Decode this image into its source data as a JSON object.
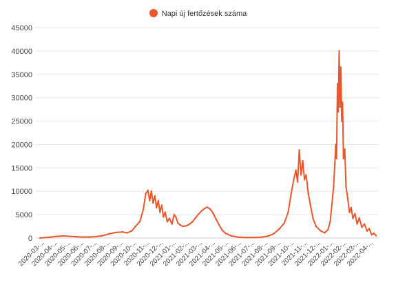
{
  "chart_data": {
    "type": "line",
    "title": "",
    "xlabel": "",
    "ylabel": "",
    "ylim": [
      0,
      45000
    ],
    "y_ticks": [
      0,
      5000,
      10000,
      15000,
      20000,
      25000,
      30000,
      35000,
      40000,
      45000
    ],
    "grid": true,
    "legend_position": "top-center",
    "x_tick_labels": [
      "2020-03-...",
      "2020-04-...",
      "2020-05-...",
      "2020-06-...",
      "2020-07-...",
      "2020-08-...",
      "2020-09-...",
      "2020-10-...",
      "2020-11-...",
      "2020-12-...",
      "2021-01-...",
      "2021-02-...",
      "2021-03-...",
      "2021-04-...",
      "2021-05-...",
      "2021-06-...",
      "2021-07-...",
      "2021-08-...",
      "2021-09-...",
      "2021-10-...",
      "2021-11-...",
      "2021-12-...",
      "2022-01-...",
      "2022-02-...",
      "2022-03-...",
      "2022-04-..."
    ],
    "series": [
      {
        "name": "Napi új fertőzések száma",
        "color": "#e8562a",
        "points": [
          [
            "2020-03-01",
            0
          ],
          [
            "2020-03-20",
            150
          ],
          [
            "2020-04-10",
            350
          ],
          [
            "2020-04-25",
            450
          ],
          [
            "2020-05-10",
            350
          ],
          [
            "2020-05-25",
            280
          ],
          [
            "2020-06-10",
            200
          ],
          [
            "2020-06-25",
            220
          ],
          [
            "2020-07-10",
            300
          ],
          [
            "2020-07-25",
            500
          ],
          [
            "2020-08-10",
            900
          ],
          [
            "2020-08-25",
            1200
          ],
          [
            "2020-09-10",
            1300
          ],
          [
            "2020-09-20",
            1100
          ],
          [
            "2020-10-01",
            1500
          ],
          [
            "2020-10-10",
            2500
          ],
          [
            "2020-10-20",
            3500
          ],
          [
            "2020-10-28",
            6000
          ],
          [
            "2020-11-03",
            9500
          ],
          [
            "2020-11-08",
            10200
          ],
          [
            "2020-11-12",
            8000
          ],
          [
            "2020-11-16",
            10000
          ],
          [
            "2020-11-20",
            7500
          ],
          [
            "2020-11-24",
            9000
          ],
          [
            "2020-11-28",
            6500
          ],
          [
            "2020-12-02",
            8000
          ],
          [
            "2020-12-06",
            5500
          ],
          [
            "2020-12-10",
            7000
          ],
          [
            "2020-12-14",
            4500
          ],
          [
            "2020-12-18",
            5500
          ],
          [
            "2020-12-23",
            3500
          ],
          [
            "2020-12-28",
            4200
          ],
          [
            "2021-01-03",
            3000
          ],
          [
            "2021-01-08",
            5000
          ],
          [
            "2021-01-12",
            4500
          ],
          [
            "2021-01-17",
            3200
          ],
          [
            "2021-01-22",
            2800
          ],
          [
            "2021-01-28",
            2500
          ],
          [
            "2021-02-05",
            2600
          ],
          [
            "2021-02-12",
            2900
          ],
          [
            "2021-02-20",
            3500
          ],
          [
            "2021-02-27",
            4300
          ],
          [
            "2021-03-06",
            5100
          ],
          [
            "2021-03-13",
            5800
          ],
          [
            "2021-03-20",
            6300
          ],
          [
            "2021-03-26",
            6600
          ],
          [
            "2021-04-02",
            6200
          ],
          [
            "2021-04-09",
            5300
          ],
          [
            "2021-04-16",
            4000
          ],
          [
            "2021-04-23",
            2800
          ],
          [
            "2021-04-30",
            1700
          ],
          [
            "2021-05-08",
            1000
          ],
          [
            "2021-05-20",
            500
          ],
          [
            "2021-06-05",
            200
          ],
          [
            "2021-06-25",
            100
          ],
          [
            "2021-07-15",
            100
          ],
          [
            "2021-08-01",
            200
          ],
          [
            "2021-08-15",
            400
          ],
          [
            "2021-08-28",
            900
          ],
          [
            "2021-09-10",
            1900
          ],
          [
            "2021-09-22",
            3200
          ],
          [
            "2021-10-01",
            5500
          ],
          [
            "2021-10-08",
            9500
          ],
          [
            "2021-10-14",
            12500
          ],
          [
            "2021-10-19",
            14500
          ],
          [
            "2021-10-23",
            12000
          ],
          [
            "2021-10-27",
            18800
          ],
          [
            "2021-10-31",
            13500
          ],
          [
            "2021-11-04",
            16500
          ],
          [
            "2021-11-08",
            12500
          ],
          [
            "2021-11-12",
            13500
          ],
          [
            "2021-11-17",
            9500
          ],
          [
            "2021-11-22",
            7000
          ],
          [
            "2021-11-28",
            4200
          ],
          [
            "2021-12-05",
            2500
          ],
          [
            "2021-12-15",
            1600
          ],
          [
            "2021-12-25",
            1100
          ],
          [
            "2022-01-02",
            1800
          ],
          [
            "2022-01-07",
            3500
          ],
          [
            "2022-01-12",
            8000
          ],
          [
            "2022-01-15",
            11000
          ],
          [
            "2022-01-18",
            16000
          ],
          [
            "2022-01-20",
            20000
          ],
          [
            "2022-01-22",
            17000
          ],
          [
            "2022-01-24",
            33000
          ],
          [
            "2022-01-26",
            27000
          ],
          [
            "2022-01-28",
            40000
          ],
          [
            "2022-01-30",
            28000
          ],
          [
            "2022-02-01",
            36500
          ],
          [
            "2022-02-03",
            25000
          ],
          [
            "2022-02-05",
            29000
          ],
          [
            "2022-02-07",
            17000
          ],
          [
            "2022-02-10",
            19000
          ],
          [
            "2022-02-13",
            11000
          ],
          [
            "2022-02-17",
            8500
          ],
          [
            "2022-02-21",
            5500
          ],
          [
            "2022-02-25",
            6500
          ],
          [
            "2022-03-01",
            4200
          ],
          [
            "2022-03-06",
            5200
          ],
          [
            "2022-03-11",
            3000
          ],
          [
            "2022-03-16",
            4300
          ],
          [
            "2022-03-22",
            2300
          ],
          [
            "2022-03-28",
            3000
          ],
          [
            "2022-04-03",
            1500
          ],
          [
            "2022-04-08",
            2000
          ],
          [
            "2022-04-14",
            700
          ],
          [
            "2022-04-19",
            1000
          ],
          [
            "2022-04-24",
            500
          ]
        ]
      }
    ]
  }
}
